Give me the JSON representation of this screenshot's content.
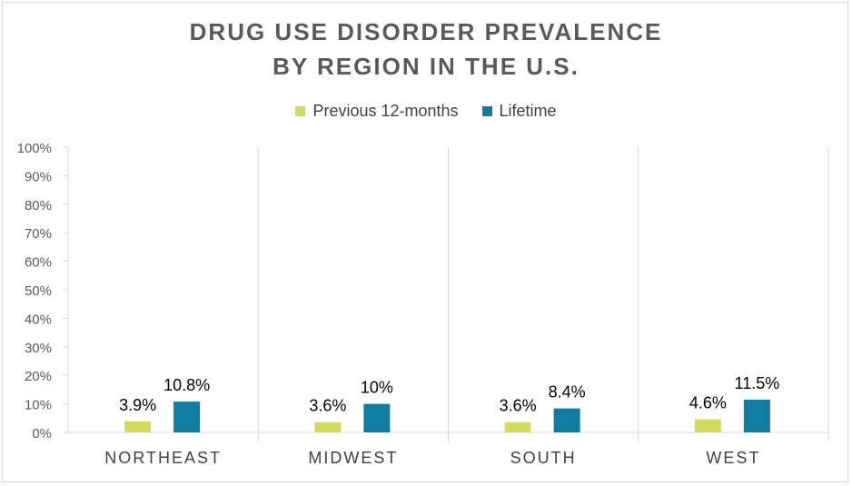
{
  "chart_data": {
    "type": "bar",
    "title_lines": [
      "DRUG USE DISORDER PREVALENCE",
      "BY REGION IN THE U.S."
    ],
    "categories": [
      "NORTHEAST",
      "MIDWEST",
      "SOUTH",
      "WEST"
    ],
    "series": [
      {
        "name": "Previous 12-months",
        "color": "#d2dc5a",
        "values": [
          3.9,
          3.6,
          3.6,
          4.6
        ],
        "labels": [
          "3.9%",
          "3.6%",
          "3.6%",
          "4.6%"
        ]
      },
      {
        "name": "Lifetime",
        "color": "#0f7d9e",
        "values": [
          10.8,
          10,
          8.4,
          11.5
        ],
        "labels": [
          "10.8%",
          "10%",
          "8.4%",
          "11.5%"
        ]
      }
    ],
    "ylim": [
      0,
      100
    ],
    "yticks": [
      0,
      10,
      20,
      30,
      40,
      50,
      60,
      70,
      80,
      90,
      100
    ],
    "ytick_labels": [
      "0%",
      "10%",
      "20%",
      "30%",
      "40%",
      "50%",
      "60%",
      "70%",
      "80%",
      "90%",
      "100%"
    ],
    "grid": "vertical category separators",
    "legend_position": "top"
  }
}
